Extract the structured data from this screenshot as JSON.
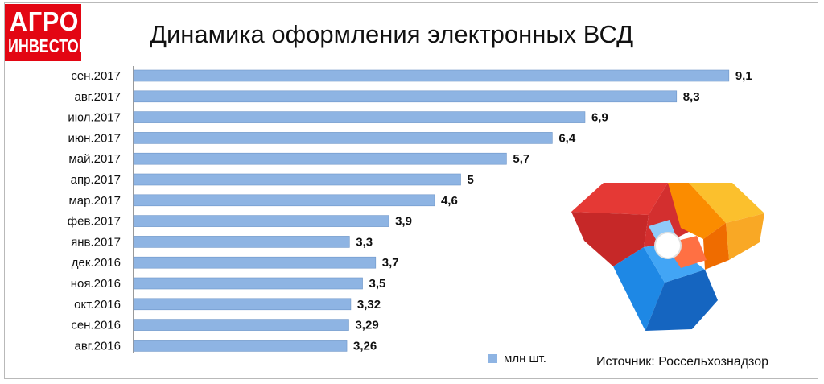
{
  "logo": {
    "line1": "АГРО",
    "line2": "ИНВЕСТОР"
  },
  "title": "Динамика оформления электронных ВСД",
  "legend": {
    "label": "млн шт."
  },
  "source": "Источник: Россельхознадзор",
  "emblem": {
    "name": "rosselkhoznadzor-emblem"
  },
  "chart_data": {
    "type": "bar",
    "orientation": "horizontal",
    "title": "Динамика оформления электронных ВСД",
    "categories": [
      "сен.2017",
      "авг.2017",
      "июл.2017",
      "июн.2017",
      "май.2017",
      "апр.2017",
      "мар.2017",
      "фев.2017",
      "янв.2017",
      "дек.2016",
      "ноя.2016",
      "окт.2016",
      "сен.2016",
      "авг.2016"
    ],
    "values": [
      9.1,
      8.3,
      6.9,
      6.4,
      5.7,
      5,
      4.6,
      3.9,
      3.3,
      3.7,
      3.5,
      3.32,
      3.29,
      3.26
    ],
    "labels": [
      "9,1",
      "8,3",
      "6,9",
      "6,4",
      "5,7",
      "5",
      "4,6",
      "3,9",
      "3,3",
      "3,7",
      "3,5",
      "3,32",
      "3,29",
      "3,26"
    ],
    "series_name": "млн шт.",
    "xlim": [
      0,
      10
    ],
    "grid": false,
    "bar_color": "#8eb4e3",
    "bar_edge_color": "#6f96c8"
  }
}
